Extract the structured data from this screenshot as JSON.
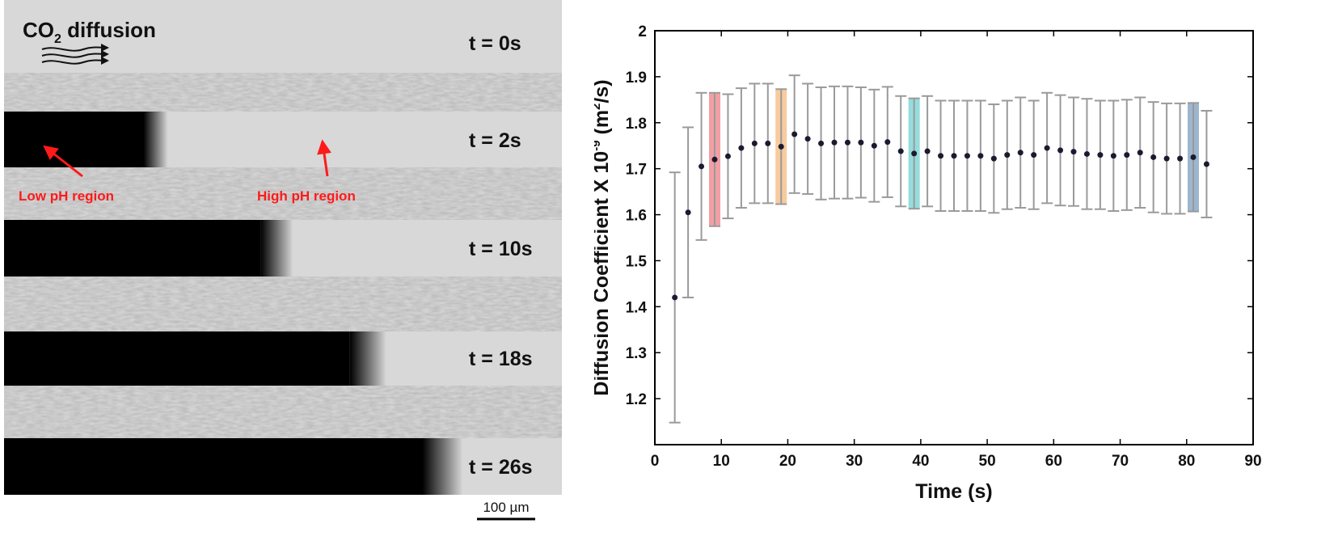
{
  "micrograph": {
    "title_prefix": "CO",
    "title_sub": "2",
    "title_suffix": " diffusion",
    "time_labels": [
      "t = 0s",
      "t = 2s",
      "t = 10s",
      "t = 18s",
      "t = 26s"
    ],
    "low_ph_label": "Low pH region",
    "high_ph_label": "High pH region",
    "scale_bar_label": "100 µm",
    "front_fractions": [
      0,
      0.25,
      0.46,
      0.62,
      0.75
    ],
    "colors": {
      "annotation": "#ff1a1a",
      "background": "#d8d8d8",
      "dark": "#000000"
    }
  },
  "chart_data": {
    "type": "scatter",
    "title": "",
    "xlabel": "Time (s)",
    "ylabel_prefix": "Diffusion Coefficient X 10",
    "ylabel_exp": "-9",
    "ylabel_unit_pre": " (m",
    "ylabel_unit_exp": "2",
    "ylabel_unit_post": "/s)",
    "xlim": [
      0,
      90
    ],
    "ylim": [
      1.1,
      2.0
    ],
    "x_ticks": [
      0,
      10,
      20,
      30,
      40,
      50,
      60,
      70,
      80,
      90
    ],
    "y_ticks": [
      1.2,
      1.3,
      1.4,
      1.5,
      1.6,
      1.7,
      1.8,
      1.9,
      2.0
    ],
    "x_tick_labels": [
      "0",
      "10",
      "20",
      "30",
      "40",
      "50",
      "60",
      "70",
      "80",
      "90"
    ],
    "y_tick_labels": [
      "1.2",
      "1.3",
      "1.4",
      "1.5",
      "1.6",
      "1.7",
      "1.8",
      "1.9",
      "2"
    ],
    "grid": false,
    "series": [
      {
        "x": [
          3,
          5,
          7,
          9,
          11,
          13,
          15,
          17,
          19,
          21,
          23,
          25,
          27,
          29,
          31,
          33,
          35,
          37,
          39,
          41,
          43,
          45,
          47,
          49,
          51,
          53,
          55,
          57,
          59,
          61,
          63,
          65,
          67,
          69,
          71,
          73,
          75,
          77,
          79,
          81,
          83
        ],
        "y": [
          1.42,
          1.605,
          1.705,
          1.72,
          1.727,
          1.745,
          1.755,
          1.755,
          1.748,
          1.775,
          1.765,
          1.755,
          1.757,
          1.757,
          1.757,
          1.75,
          1.758,
          1.738,
          1.733,
          1.738,
          1.728,
          1.728,
          1.728,
          1.728,
          1.722,
          1.73,
          1.735,
          1.73,
          1.745,
          1.74,
          1.737,
          1.732,
          1.73,
          1.728,
          1.73,
          1.735,
          1.725,
          1.722,
          1.722,
          1.725,
          1.71
        ],
        "yerr": [
          0.272,
          0.185,
          0.16,
          0.145,
          0.135,
          0.13,
          0.13,
          0.13,
          0.125,
          0.128,
          0.12,
          0.122,
          0.122,
          0.122,
          0.12,
          0.122,
          0.12,
          0.12,
          0.12,
          0.12,
          0.12,
          0.12,
          0.12,
          0.12,
          0.118,
          0.118,
          0.12,
          0.118,
          0.12,
          0.12,
          0.118,
          0.12,
          0.118,
          0.12,
          0.12,
          0.12,
          0.12,
          0.12,
          0.12,
          0.118,
          0.116
        ]
      }
    ],
    "highlights": [
      {
        "x": 9,
        "color": "#e8505a"
      },
      {
        "x": 19,
        "color": "#f0a050"
      },
      {
        "x": 39,
        "color": "#40c0c0"
      },
      {
        "x": 81,
        "color": "#4a7aa8"
      }
    ],
    "colors": {
      "marker": "#1a1a30",
      "errorbar": "#9a9a9a",
      "axis": "#000000"
    }
  }
}
